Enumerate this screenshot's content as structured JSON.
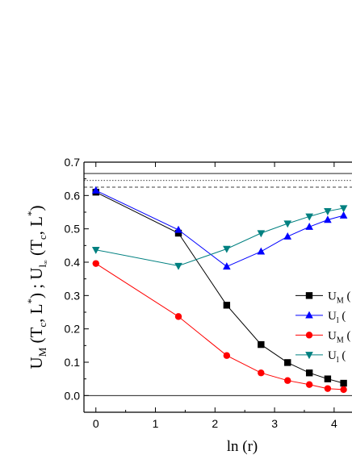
{
  "chart_data": {
    "type": "line",
    "x": [
      0,
      1.386,
      2.197,
      2.773,
      3.219,
      3.584,
      3.892,
      4.159
    ],
    "xlim": [
      -0.2,
      4.3
    ],
    "ylim": [
      -0.05,
      0.7
    ],
    "xticks": [
      0,
      1,
      2,
      3,
      4
    ],
    "yticks": [
      0.0,
      0.1,
      0.2,
      0.3,
      0.4,
      0.5,
      0.6,
      0.7
    ],
    "xtick_labels": [
      "0",
      "1",
      "2",
      "3",
      "4"
    ],
    "ytick_labels": [
      "0.0",
      "0.1",
      "0.2",
      "0.3",
      "0.4",
      "0.5",
      "0.6",
      "0.7"
    ],
    "xlabel": "ln (r)",
    "ylabel": "U_M (T_c, L^*) ; U_l (T_c, L^*)",
    "legend_position": "center-right",
    "reference_lines": [
      {
        "y": 0.666,
        "style": "solid"
      },
      {
        "y": 0.645,
        "style": "dotted"
      },
      {
        "y": 0.625,
        "style": "dashed"
      },
      {
        "y": 0.0,
        "style": "solid"
      }
    ],
    "series": [
      {
        "legend": "U_M (",
        "color": "#000000",
        "marker": "square",
        "values": [
          0.61,
          0.487,
          0.271,
          0.153,
          0.099,
          0.068,
          0.05,
          0.037
        ]
      },
      {
        "legend": "U_l (",
        "color": "#0000ff",
        "marker": "triangle-up",
        "values": [
          0.615,
          0.497,
          0.387,
          0.432,
          0.477,
          0.506,
          0.527,
          0.54
        ]
      },
      {
        "legend": "U_M (",
        "color": "#ff0000",
        "marker": "circle",
        "values": [
          0.396,
          0.237,
          0.12,
          0.068,
          0.045,
          0.033,
          0.021,
          0.018
        ]
      },
      {
        "legend": "U_l (",
        "color": "#008080",
        "marker": "triangle-down",
        "values": [
          0.437,
          0.389,
          0.44,
          0.487,
          0.516,
          0.537,
          0.553,
          0.562
        ]
      }
    ]
  }
}
